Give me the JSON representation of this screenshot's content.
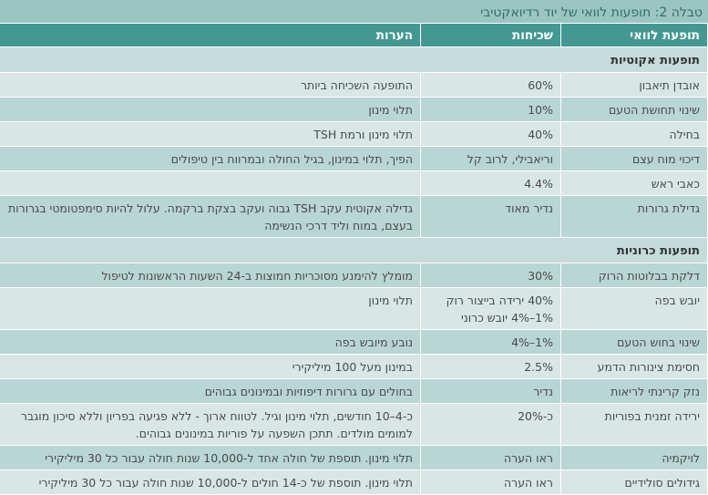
{
  "caption": "טבלה 2: תופעות לוואי של יוד רדיואקטיבי",
  "table": {
    "headers": [
      "תופעת לוואי",
      "שכיחות",
      "הערות"
    ],
    "sections": [
      {
        "title": "תופעות אקוטיות",
        "rows": [
          {
            "effect": "אובדן תיאבון",
            "frequency": "60%",
            "notes": "התופעה השכיחה ביותר"
          },
          {
            "effect": "שינוי תחושת הטעם",
            "frequency": "10%",
            "notes": "תלוי מינון"
          },
          {
            "effect": "בחילה",
            "frequency": "40%",
            "notes": "תלוי מינון ורמת TSH"
          },
          {
            "effect": "דיכוי מוח עצם",
            "frequency": "וריאבילי, לרוב קל",
            "notes": "הפיך, תלוי במינון, בגיל החולה ובמרווח בין טיפולים"
          },
          {
            "effect": "כאבי ראש",
            "frequency": "4.4%",
            "notes": ""
          },
          {
            "effect": "גדילת גרורות",
            "frequency": "נדיר מאוד",
            "notes": "גדילה אקוטית עקב TSH גבוה ועקב בצקת ברקמה. עלול להיות סימפטומטי בגרורות בעצם, במוח וליד דרכי הנשימה"
          }
        ]
      },
      {
        "title": "תופעות כרוניות",
        "rows": [
          {
            "effect": "דלקת בבלוטות הרוק",
            "frequency": "30%",
            "notes": "מומלץ להימנע מסוכריות חמוצות ב-24 השעות הראשונות לטיפול"
          },
          {
            "effect": "יובש בפה",
            "frequency": "40% ירידה בייצור רוק\n1%-4% יובש כרוני",
            "frequency_line1": "40% ירידה בייצור רוק",
            "frequency_line2": "1%–4% יובש כרוני",
            "notes": "תלוי מינון"
          },
          {
            "effect": "שינוי בחוש הטעם",
            "frequency": "1%–4%",
            "notes": "נובע מיובש בפה"
          },
          {
            "effect": "חסימת צינורות הדמע",
            "frequency": "2.5%",
            "notes": "במינון מעל 100 מיליקירי"
          },
          {
            "effect": "נזק קרינתי לריאות",
            "frequency": "נדיר",
            "notes": "בחולים עם גרורות דיפוזיות ובמינונים גבוהים"
          },
          {
            "effect": "ירידה זמנית בפוריות",
            "frequency": "כ-20%",
            "notes": "כ-4–10 חודשים, תלוי מינון וגיל. לטווח ארוך - ללא פגיעה בפריון וללא סיכון מוגבר למומים מולדים. תתכן השפעה על פוריות במינונים גבוהים."
          },
          {
            "effect": "לויקמיה",
            "frequency": "ראו הערה",
            "notes": "תלוי מינון. תוספת של חולה אחד ל-10,000 שנות חולה עבור כל 30 מיליקירי"
          },
          {
            "effect": "גידולים סולידיים",
            "frequency": "ראו הערה",
            "notes": "תלוי מינון. תוספת של כ-14 חולים ל-10,000 שנות חולה עבור כל 30 מיליקירי"
          }
        ]
      }
    ]
  },
  "colors": {
    "caption_bg": "#9cc5c1",
    "caption_text": "#2f6e69",
    "header_bg": "#449893",
    "row_dark": "#b8d6d3",
    "row_light": "#d8e7e5",
    "section_bg": "#c5dcda"
  }
}
